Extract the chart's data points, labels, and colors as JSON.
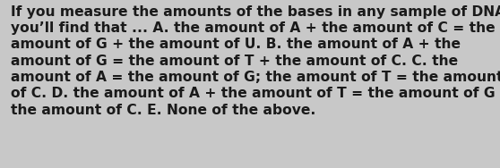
{
  "lines": [
    "If you measure the amounts of the bases in any sample of DNA,",
    "you’ll find that ... A. the amount of A + the amount of C = the",
    "amount of G + the amount of U. B. the amount of A + the",
    "amount of G = the amount of T + the amount of C. C. the",
    "amount of A = the amount of G; the amount of T = the amount",
    "of C. D. the amount of A + the amount of T = the amount of G +",
    "the amount of C. E. None of the above."
  ],
  "background_color": "#c8c8c8",
  "text_color": "#1a1a1a",
  "fontsize": 11.2,
  "font_family": "DejaVu Sans",
  "fig_width": 5.58,
  "fig_height": 1.88,
  "dpi": 100
}
